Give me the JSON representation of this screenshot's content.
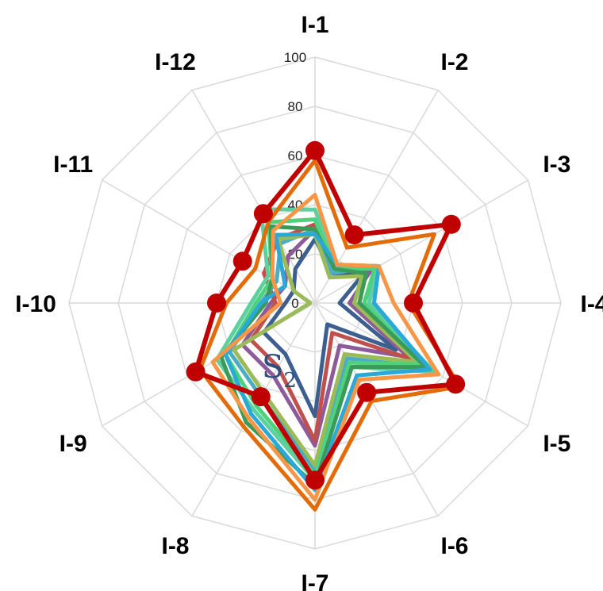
{
  "chart_data": {
    "type": "radar",
    "title": "",
    "panel_label": "S",
    "panel_label_subscript": "2",
    "categories": [
      "I-1",
      "I-2",
      "I-3",
      "I-4",
      "I-5",
      "I-6",
      "I-7",
      "I-8",
      "I-9",
      "I-10",
      "I-11",
      "I-12"
    ],
    "rlim": [
      0,
      100
    ],
    "rticks": [
      0,
      20,
      40,
      60,
      80,
      100
    ],
    "grid": true,
    "series": [
      {
        "color": "#3d5f8f",
        "values": [
          26,
          14,
          22,
          10,
          38,
          10,
          46,
          24,
          24,
          12,
          10,
          16
        ],
        "markers": false
      },
      {
        "color": "#8e5b9a",
        "values": [
          30,
          18,
          26,
          14,
          44,
          20,
          58,
          34,
          34,
          18,
          14,
          22
        ],
        "markers": false
      },
      {
        "color": "#c0504d",
        "values": [
          32,
          16,
          24,
          18,
          46,
          14,
          56,
          30,
          30,
          16,
          24,
          30
        ],
        "markers": false
      },
      {
        "color": "#4bacc6",
        "values": [
          30,
          14,
          30,
          20,
          52,
          26,
          68,
          44,
          40,
          22,
          18,
          28
        ],
        "markers": false
      },
      {
        "color": "#9bbb59",
        "values": [
          28,
          12,
          22,
          16,
          48,
          24,
          66,
          42,
          38,
          2,
          10,
          30
        ],
        "markers": false
      },
      {
        "color": "#4dd17a",
        "values": [
          34,
          16,
          28,
          20,
          50,
          28,
          70,
          48,
          42,
          24,
          20,
          38
        ],
        "markers": false
      },
      {
        "color": "#5ecf9f",
        "values": [
          38,
          18,
          30,
          22,
          56,
          30,
          72,
          50,
          46,
          26,
          22,
          44
        ],
        "markers": false
      },
      {
        "color": "#3c9a58",
        "values": [
          30,
          16,
          24,
          18,
          52,
          30,
          74,
          56,
          44,
          20,
          20,
          36
        ],
        "markers": false
      },
      {
        "color": "#2aa8d8",
        "values": [
          28,
          18,
          30,
          24,
          54,
          34,
          76,
          52,
          42,
          22,
          14,
          32
        ],
        "markers": false
      },
      {
        "color": "#f79646",
        "values": [
          44,
          18,
          30,
          32,
          58,
          36,
          80,
          54,
          48,
          14,
          20,
          34
        ],
        "markers": false
      },
      {
        "color": "#e36c09",
        "values": [
          58,
          26,
          56,
          38,
          68,
          46,
          84,
          58,
          54,
          36,
          28,
          38
        ],
        "markers": false
      },
      {
        "color": "#c00000",
        "values": [
          62,
          32,
          64,
          40,
          66,
          42,
          72,
          44,
          56,
          40,
          34,
          42
        ],
        "markers": true
      }
    ]
  }
}
